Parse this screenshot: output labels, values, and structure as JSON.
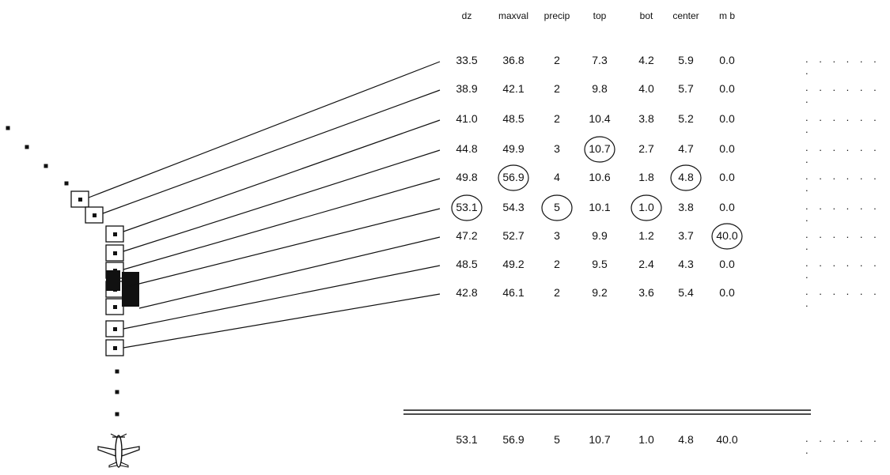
{
  "columns": [
    "dz",
    "maxval",
    "precip",
    "top",
    "bot",
    "center",
    "m b"
  ],
  "rows": [
    {
      "values": [
        "33.5",
        "36.8",
        "2",
        "7.3",
        "4.2",
        "5.9",
        "0.0"
      ],
      "trail": ". . . . . . ."
    },
    {
      "values": [
        "38.9",
        "42.1",
        "2",
        "9.8",
        "4.0",
        "5.7",
        "0.0"
      ],
      "trail": ". . . . . . ."
    },
    {
      "values": [
        "41.0",
        "48.5",
        "2",
        "10.4",
        "3.8",
        "5.2",
        "0.0"
      ],
      "trail": ". . . . . . ."
    },
    {
      "values": [
        "44.8",
        "49.9",
        "3",
        "10.7",
        "2.7",
        "4.7",
        "0.0"
      ],
      "trail": ". . . . . . ."
    },
    {
      "values": [
        "49.8",
        "56.9",
        "4",
        "10.6",
        "1.8",
        "4.8",
        "0.0"
      ],
      "trail": ". . . . . . ."
    },
    {
      "values": [
        "53.1",
        "54.3",
        "5",
        "10.1",
        "1.0",
        "3.8",
        "0.0"
      ],
      "trail": ". . . . . . ."
    },
    {
      "values": [
        "47.2",
        "52.7",
        "3",
        "9.9",
        "1.2",
        "3.7",
        "40.0"
      ],
      "trail": ". . . . . . ."
    },
    {
      "values": [
        "48.5",
        "49.2",
        "2",
        "9.5",
        "2.4",
        "4.3",
        "0.0"
      ],
      "trail": ". . . . . . ."
    },
    {
      "values": [
        "42.8",
        "46.1",
        "2",
        "9.2",
        "3.6",
        "5.4",
        "0.0"
      ],
      "trail": ". . . . . . ."
    }
  ],
  "summary": {
    "values": [
      "53.1",
      "56.9",
      "5",
      "10.7",
      "1.0",
      "4.8",
      "40.0"
    ],
    "trail": ". . . . . . ."
  },
  "circled": [
    [
      5,
      0
    ],
    [
      4,
      1
    ],
    [
      5,
      2
    ],
    [
      3,
      3
    ],
    [
      5,
      4
    ],
    [
      4,
      5
    ],
    [
      6,
      6
    ]
  ],
  "icons": {
    "aircraft": "aircraft-icon",
    "gate": "gate-box-icon",
    "track": "track-dot-icon",
    "core": "filled-core-icon"
  }
}
